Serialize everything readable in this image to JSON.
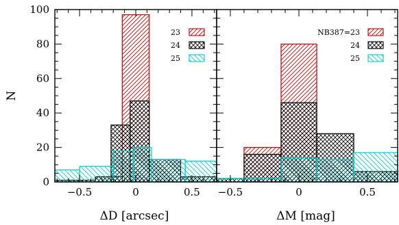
{
  "chart_data": {
    "type": "histogram",
    "y_axis": {
      "label": "N",
      "range": [
        0,
        100
      ],
      "ticks": [
        0,
        20,
        40,
        60,
        80,
        100
      ]
    },
    "legend_placement": "top-right",
    "panels": [
      {
        "xlabel": "ΔD [arcsec]",
        "xlim": [
          -0.72,
          0.72
        ],
        "ticks": [
          -0.5,
          0,
          0.5
        ],
        "tick_labels": [
          "−0.5",
          "0",
          "0.5"
        ],
        "series": [
          {
            "name": "23",
            "color": "#cc0000",
            "hatch": "forward",
            "bins": [
              [
                -0.12,
                0.12,
                97
              ]
            ]
          },
          {
            "name": "24",
            "color": "#000000",
            "hatch": "cross",
            "bins": [
              [
                -0.72,
                -0.36,
                1
              ],
              [
                -0.36,
                -0.12,
                3
              ],
              [
                -0.22,
                -0.05,
                33
              ],
              [
                -0.05,
                0.12,
                47
              ],
              [
                0.12,
                0.4,
                13
              ],
              [
                0.4,
                0.72,
                3
              ]
            ]
          },
          {
            "name": "25",
            "color": "#00cccc",
            "hatch": "back",
            "bins": [
              [
                -0.72,
                -0.5,
                7
              ],
              [
                -0.5,
                -0.2,
                9
              ],
              [
                -0.2,
                -0.02,
                18
              ],
              [
                -0.02,
                0.14,
                20
              ],
              [
                0.14,
                0.44,
                13
              ],
              [
                0.44,
                0.72,
                12
              ]
            ]
          }
        ]
      },
      {
        "xlabel": "ΔM [mag]",
        "xlim": [
          -0.6,
          0.72
        ],
        "ticks": [
          -0.5,
          0,
          0.5
        ],
        "tick_labels": [
          "−0.5",
          "0",
          "0.5"
        ],
        "series": [
          {
            "name": "NB387=23",
            "color": "#cc0000",
            "hatch": "forward",
            "bins": [
              [
                -0.4,
                -0.13,
                20
              ],
              [
                -0.13,
                0.13,
                80
              ]
            ]
          },
          {
            "name": "24",
            "color": "#000000",
            "hatch": "cross",
            "bins": [
              [
                -0.6,
                -0.4,
                2
              ],
              [
                -0.4,
                -0.13,
                16
              ],
              [
                -0.13,
                0.13,
                46
              ],
              [
                0.13,
                0.4,
                28
              ],
              [
                0.4,
                0.72,
                6
              ]
            ]
          },
          {
            "name": "25",
            "color": "#00cccc",
            "hatch": "back",
            "bins": [
              [
                -0.6,
                -0.13,
                2
              ],
              [
                -0.13,
                0.13,
                14
              ],
              [
                0.13,
                0.4,
                13
              ],
              [
                0.4,
                0.72,
                17
              ]
            ]
          }
        ]
      }
    ]
  }
}
